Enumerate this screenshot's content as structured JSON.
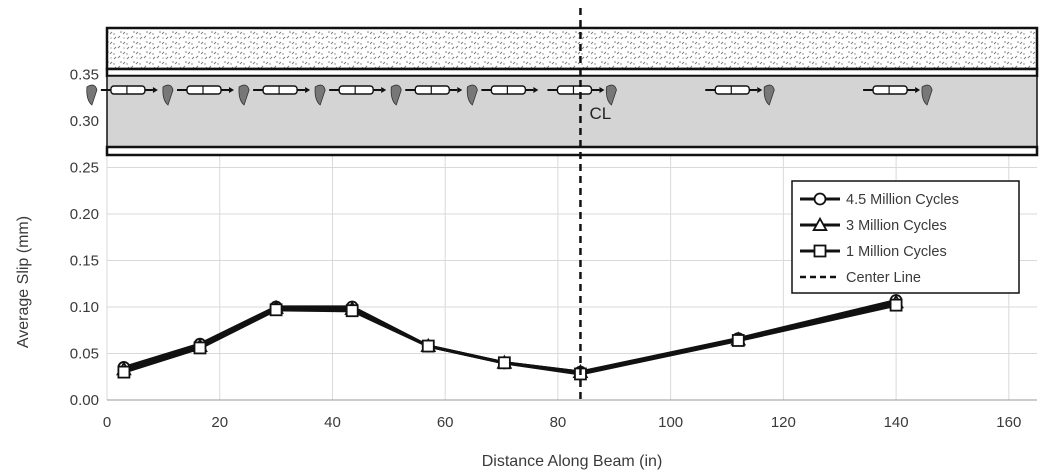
{
  "chart_data": {
    "type": "line",
    "title": "",
    "xlabel": "Distance Along Beam (in)",
    "ylabel": "Average Slip (mm)",
    "xlim": [
      0,
      165
    ],
    "ylim": [
      0,
      0.4
    ],
    "x_ticks": [
      "0",
      "20",
      "40",
      "60",
      "80",
      "100",
      "120",
      "140",
      "160"
    ],
    "y_ticks": [
      "0.00",
      "0.05",
      "0.10",
      "0.15",
      "0.20",
      "0.25",
      "0.30",
      "0.35"
    ],
    "grid": true,
    "legend_position": "right",
    "center_line": {
      "x": 84,
      "label": "Center Line",
      "annotation": "CL"
    },
    "x": [
      3,
      16.5,
      30,
      43.5,
      57,
      70.5,
      84,
      112,
      140
    ],
    "series": [
      {
        "name": "4.5 Million Cycles",
        "marker": "circle",
        "values": [
          0.035,
          0.06,
          0.1,
          0.1,
          0.058,
          0.04,
          0.03,
          0.066,
          0.107
        ]
      },
      {
        "name": "3 Million Cycles",
        "marker": "triangle",
        "values": [
          0.033,
          0.058,
          0.099,
          0.098,
          0.058,
          0.04,
          0.03,
          0.065,
          0.105
        ]
      },
      {
        "name": "1 Million Cycles",
        "marker": "square",
        "values": [
          0.03,
          0.056,
          0.097,
          0.096,
          0.058,
          0.04,
          0.028,
          0.064,
          0.102
        ]
      }
    ],
    "sensor_positions": [
      3,
      16.5,
      30,
      43.5,
      57,
      70.5,
      84,
      112,
      140
    ],
    "colors": {
      "line": "#111111",
      "grid": "#d9d9d9",
      "concrete": "#ffffff",
      "steel_web": "#d4d4d4"
    }
  }
}
